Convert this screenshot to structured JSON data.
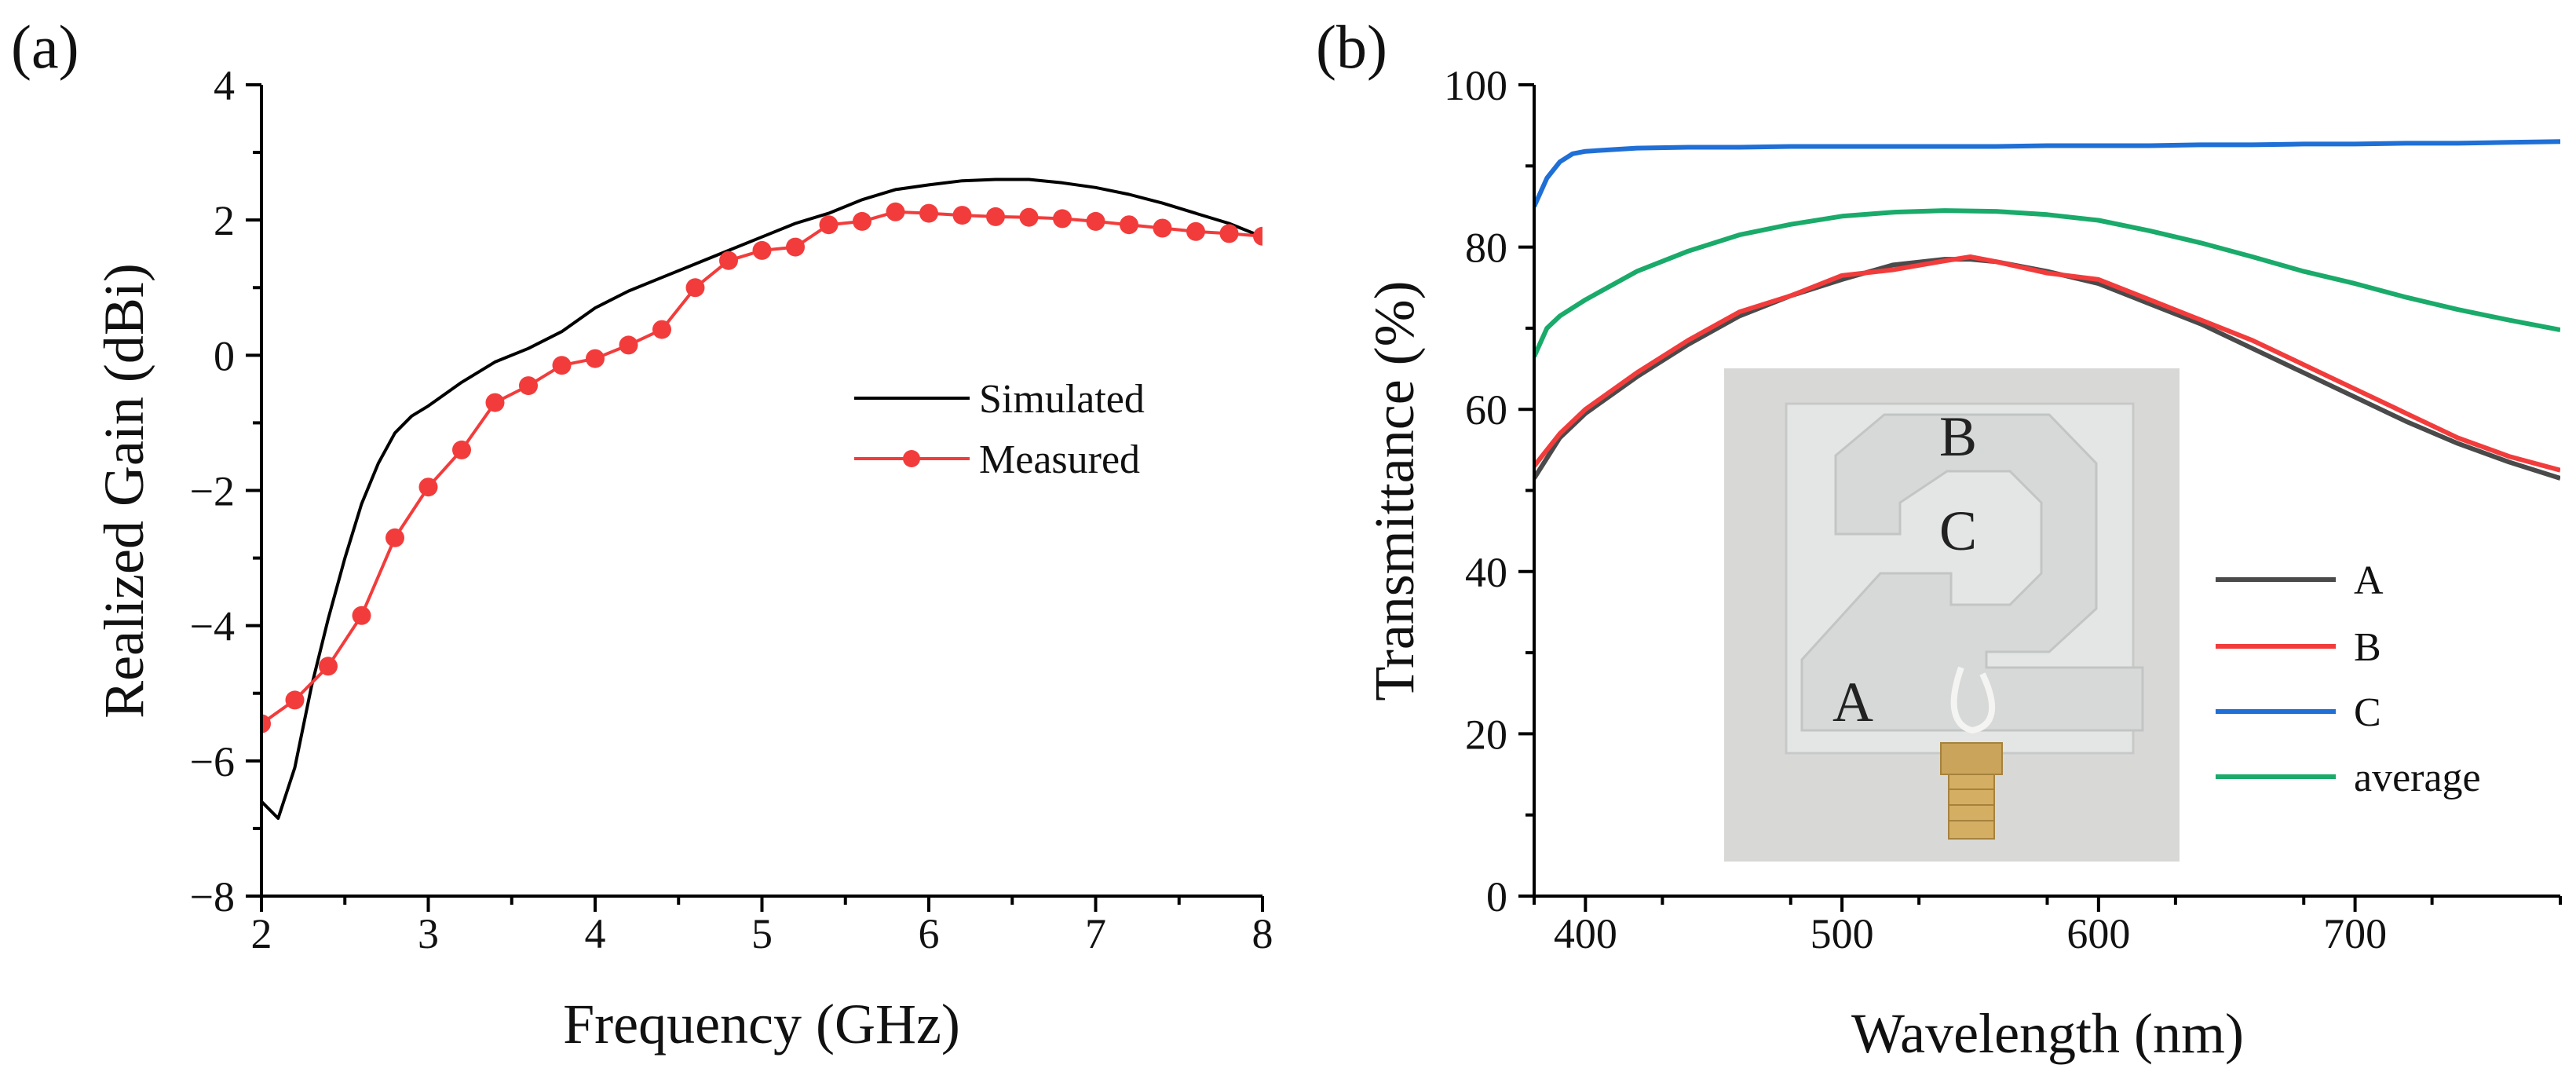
{
  "chart_data": [
    {
      "panel": "(a)",
      "type": "line",
      "xlabel": "Frequency (GHz)",
      "ylabel": "Realized Gain (dBi)",
      "xlim": [
        2,
        8
      ],
      "ylim": [
        -8,
        4
      ],
      "xticks": [
        "2",
        "3",
        "4",
        "5",
        "6",
        "7",
        "8"
      ],
      "yticks": [
        "−8",
        "−6",
        "−4",
        "−2",
        "0",
        "2",
        "4"
      ],
      "legend_position": "center-right",
      "series": [
        {
          "name": "Simulated",
          "color": "#000000",
          "marker": "none",
          "x": [
            2.0,
            2.1,
            2.2,
            2.3,
            2.4,
            2.5,
            2.6,
            2.7,
            2.8,
            2.9,
            3.0,
            3.2,
            3.4,
            3.6,
            3.8,
            4.0,
            4.2,
            4.4,
            4.6,
            4.8,
            5.0,
            5.2,
            5.4,
            5.6,
            5.8,
            6.0,
            6.2,
            6.4,
            6.6,
            6.8,
            7.0,
            7.2,
            7.4,
            7.6,
            7.8,
            8.0
          ],
          "y": [
            -6.6,
            -6.85,
            -6.1,
            -4.9,
            -3.9,
            -3.0,
            -2.2,
            -1.6,
            -1.15,
            -0.9,
            -0.75,
            -0.4,
            -0.1,
            0.1,
            0.35,
            0.7,
            0.95,
            1.15,
            1.35,
            1.55,
            1.75,
            1.95,
            2.1,
            2.3,
            2.45,
            2.52,
            2.58,
            2.6,
            2.6,
            2.55,
            2.48,
            2.38,
            2.25,
            2.1,
            1.95,
            1.75
          ]
        },
        {
          "name": "Measured",
          "color": "#f23c3c",
          "marker": "circle",
          "x": [
            2.0,
            2.2,
            2.4,
            2.6,
            2.8,
            3.0,
            3.2,
            3.4,
            3.6,
            3.8,
            4.0,
            4.2,
            4.4,
            4.6,
            4.8,
            5.0,
            5.2,
            5.4,
            5.6,
            5.8,
            6.0,
            6.2,
            6.4,
            6.6,
            6.8,
            7.0,
            7.2,
            7.4,
            7.6,
            7.8,
            8.0
          ],
          "y": [
            -5.45,
            -5.1,
            -4.6,
            -3.85,
            -2.7,
            -1.95,
            -1.4,
            -0.7,
            -0.45,
            -0.15,
            -0.05,
            0.15,
            0.38,
            1.0,
            1.4,
            1.55,
            1.6,
            1.93,
            1.98,
            2.12,
            2.1,
            2.07,
            2.05,
            2.04,
            2.02,
            1.98,
            1.93,
            1.88,
            1.83,
            1.8,
            1.76
          ]
        }
      ]
    },
    {
      "panel": "(b)",
      "type": "line",
      "xlabel": "Wavelength (nm)",
      "ylabel": "Transmittance (%)",
      "xlim": [
        380,
        780
      ],
      "ylim": [
        0,
        100
      ],
      "xticks": [
        "400",
        "500",
        "600",
        "700"
      ],
      "yticks": [
        "0",
        "20",
        "40",
        "60",
        "80",
        "100"
      ],
      "legend_position": "bottom-right",
      "inset_labels": [
        "B",
        "C",
        "A"
      ],
      "series": [
        {
          "name": "A",
          "color": "#4a4a4a",
          "x": [
            380,
            390,
            400,
            420,
            440,
            460,
            480,
            500,
            520,
            540,
            550,
            560,
            580,
            600,
            620,
            640,
            660,
            680,
            700,
            720,
            740,
            760,
            780
          ],
          "y": [
            51.5,
            56.5,
            59.5,
            64.0,
            68.0,
            71.5,
            74.0,
            76.0,
            77.8,
            78.5,
            78.5,
            78.2,
            77.0,
            75.5,
            73.0,
            70.5,
            67.5,
            64.5,
            61.5,
            58.5,
            55.8,
            53.5,
            51.5
          ]
        },
        {
          "name": "B",
          "color": "#f23c3c",
          "x": [
            380,
            390,
            400,
            420,
            440,
            460,
            480,
            500,
            520,
            540,
            550,
            560,
            580,
            600,
            620,
            640,
            660,
            680,
            700,
            720,
            740,
            760,
            780
          ],
          "y": [
            53.0,
            57.0,
            60.0,
            64.5,
            68.5,
            72.0,
            74.0,
            76.5,
            77.2,
            78.3,
            78.8,
            78.2,
            76.8,
            76.0,
            73.5,
            71.0,
            68.5,
            65.5,
            62.5,
            59.5,
            56.5,
            54.2,
            52.5
          ]
        },
        {
          "name": "C",
          "color": "#1f6fd6",
          "x": [
            380,
            385,
            390,
            395,
            400,
            410,
            420,
            440,
            460,
            480,
            500,
            520,
            540,
            560,
            580,
            600,
            620,
            640,
            660,
            680,
            700,
            720,
            740,
            760,
            780
          ],
          "y": [
            85.0,
            88.5,
            90.5,
            91.5,
            91.8,
            92.0,
            92.2,
            92.3,
            92.3,
            92.4,
            92.4,
            92.4,
            92.4,
            92.4,
            92.5,
            92.5,
            92.5,
            92.6,
            92.6,
            92.7,
            92.7,
            92.8,
            92.8,
            92.9,
            93.0
          ]
        },
        {
          "name": "average",
          "color": "#1aaa6a",
          "x": [
            380,
            385,
            390,
            400,
            420,
            440,
            460,
            480,
            500,
            520,
            540,
            560,
            580,
            600,
            620,
            640,
            660,
            680,
            700,
            720,
            740,
            760,
            780
          ],
          "y": [
            66.5,
            70.0,
            71.5,
            73.5,
            77.0,
            79.5,
            81.5,
            82.8,
            83.8,
            84.3,
            84.5,
            84.4,
            84.0,
            83.3,
            82.0,
            80.5,
            78.8,
            77.0,
            75.5,
            73.8,
            72.3,
            71.0,
            69.8
          ]
        }
      ]
    }
  ]
}
